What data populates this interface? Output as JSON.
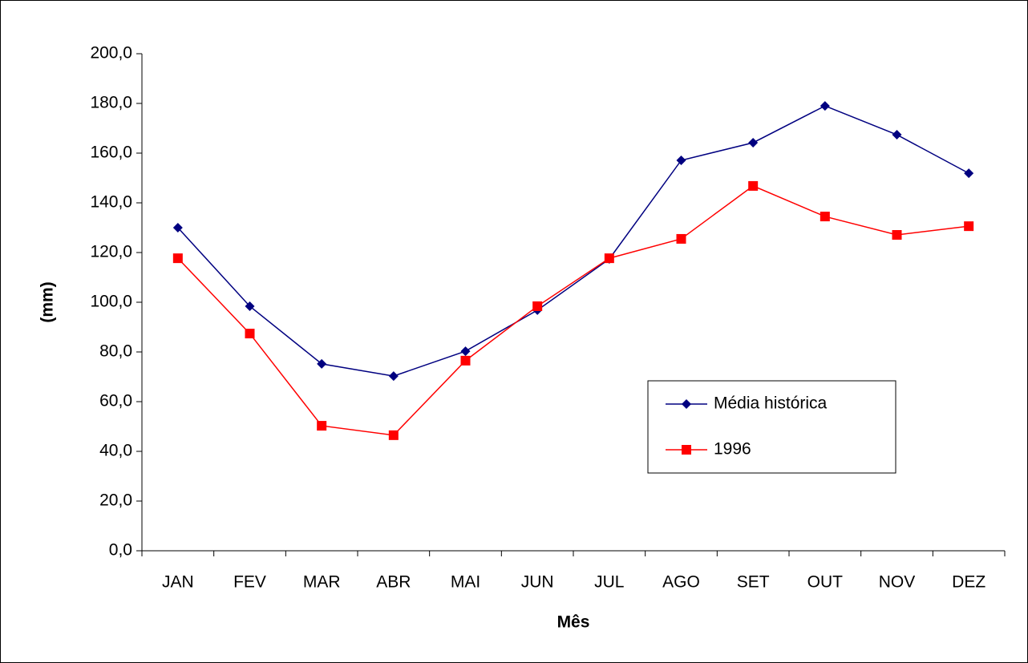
{
  "chart_data": {
    "type": "line",
    "x_label": "Mês",
    "y_label": "(mm)",
    "categories": [
      "JAN",
      "FEV",
      "MAR",
      "ABR",
      "MAI",
      "JUN",
      "JUL",
      "AGO",
      "SET",
      "OUT",
      "NOV",
      "DEZ"
    ],
    "series": [
      {
        "name": "Média histórica",
        "color": "#000080",
        "marker": "diamond",
        "values": [
          130.0,
          98.4,
          75.2,
          70.3,
          80.3,
          96.8,
          117.4,
          157.1,
          164.2,
          179.0,
          167.4,
          151.9
        ]
      },
      {
        "name": "1996",
        "color": "#ff0000",
        "marker": "square",
        "values": [
          117.7,
          87.4,
          50.3,
          46.5,
          76.5,
          98.4,
          117.7,
          125.5,
          146.8,
          134.5,
          127.1,
          130.6
        ]
      }
    ],
    "ylim": [
      0,
      200
    ],
    "yticks": [
      {
        "value": 0,
        "label": "0,0"
      },
      {
        "value": 20,
        "label": "20,0"
      },
      {
        "value": 40,
        "label": "40,0"
      },
      {
        "value": 60,
        "label": "60,0"
      },
      {
        "value": 80,
        "label": "80,0"
      },
      {
        "value": 100,
        "label": "100,0"
      },
      {
        "value": 120,
        "label": "120,0"
      },
      {
        "value": 140,
        "label": "140,0"
      },
      {
        "value": 160,
        "label": "160,0"
      },
      {
        "value": 180,
        "label": "180,0"
      },
      {
        "value": 200,
        "label": "200,0"
      }
    ],
    "grid": false,
    "legend_position": "right"
  }
}
